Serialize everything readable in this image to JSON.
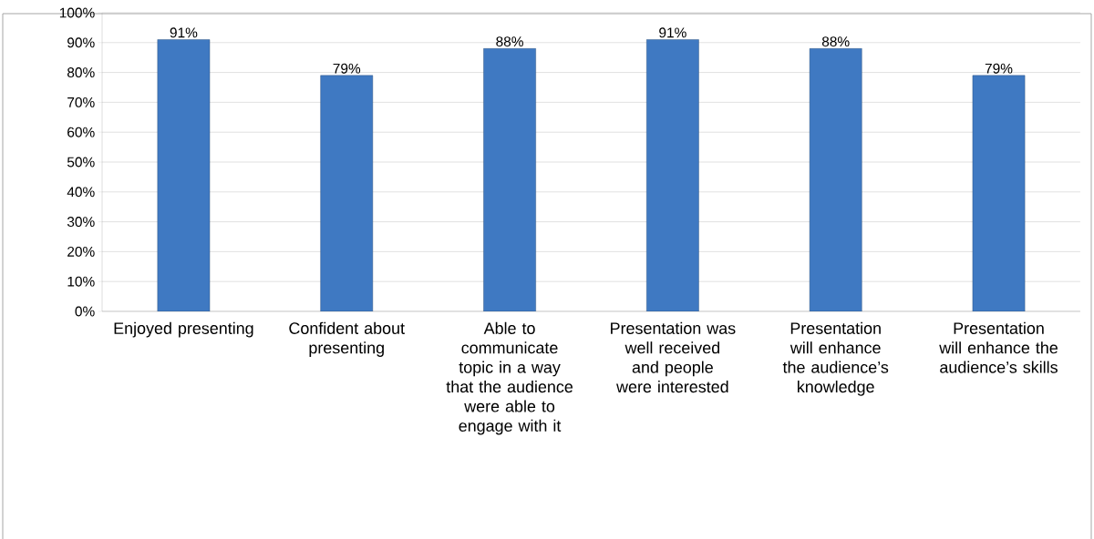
{
  "chart_data": {
    "type": "bar",
    "categories": [
      "Enjoyed presenting",
      "Confident about presenting",
      "Able to communicate topic in a way that the audience were able to engage with it",
      "Presentation was well received and people were interested",
      "Presentation will enhance the audience’s knowledge",
      "Presentation will enhance the audience’s skills"
    ],
    "values": [
      91,
      79,
      88,
      91,
      88,
      79
    ],
    "value_labels": [
      "91%",
      "79%",
      "88%",
      "91%",
      "88%",
      "79%"
    ],
    "color": "#3f79c2",
    "ylim": [
      0,
      100
    ],
    "yticks": [
      {
        "value": 0,
        "label": "0%"
      },
      {
        "value": 10,
        "label": "10%"
      },
      {
        "value": 20,
        "label": "20%"
      },
      {
        "value": 30,
        "label": "30%"
      },
      {
        "value": 40,
        "label": "40%"
      },
      {
        "value": 50,
        "label": "50%"
      },
      {
        "value": 60,
        "label": "60%"
      },
      {
        "value": 70,
        "label": "70%"
      },
      {
        "value": 80,
        "label": "80%"
      },
      {
        "value": 90,
        "label": "90%"
      },
      {
        "value": 100,
        "label": "100%"
      }
    ],
    "grid": "y"
  }
}
